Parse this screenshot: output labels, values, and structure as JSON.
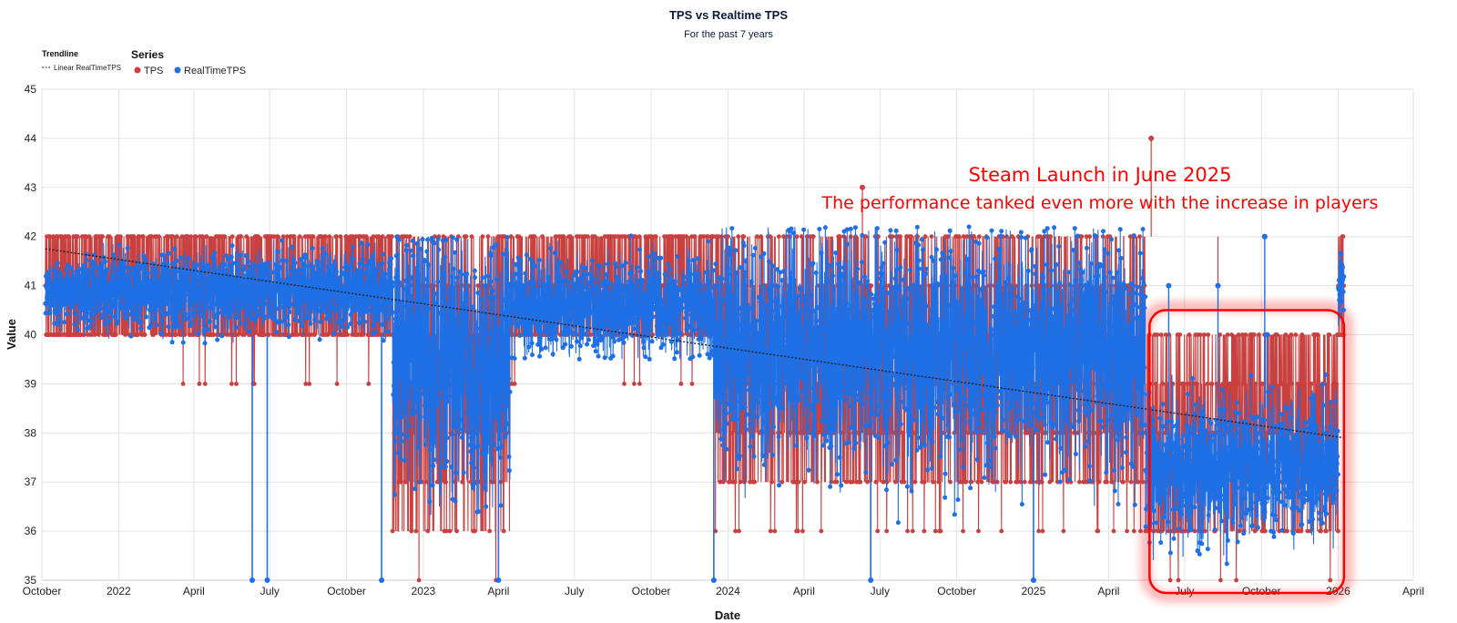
{
  "chart_data": {
    "type": "line",
    "title": "TPS vs Realtime TPS",
    "subtitle": "For the past 7 years",
    "xlabel": "Date",
    "ylabel": "Value",
    "xlim": [
      "2021-10-01",
      "2026-04-01"
    ],
    "ylim": [
      35,
      45
    ],
    "y_ticks": [
      "35",
      "36",
      "37",
      "38",
      "39",
      "40",
      "41",
      "42",
      "43",
      "44",
      "45"
    ],
    "x_ticks": [
      {
        "date": "2021-10-01",
        "label": "October"
      },
      {
        "date": "2022-01-01",
        "label": "2022"
      },
      {
        "date": "2022-04-01",
        "label": "April"
      },
      {
        "date": "2022-07-01",
        "label": "July"
      },
      {
        "date": "2022-10-01",
        "label": "October"
      },
      {
        "date": "2023-01-01",
        "label": "2023"
      },
      {
        "date": "2023-04-01",
        "label": "April"
      },
      {
        "date": "2023-07-01",
        "label": "July"
      },
      {
        "date": "2023-10-01",
        "label": "October"
      },
      {
        "date": "2024-01-01",
        "label": "2024"
      },
      {
        "date": "2024-04-01",
        "label": "April"
      },
      {
        "date": "2024-07-01",
        "label": "July"
      },
      {
        "date": "2024-10-01",
        "label": "October"
      },
      {
        "date": "2025-01-01",
        "label": "2025"
      },
      {
        "date": "2025-04-01",
        "label": "April"
      },
      {
        "date": "2025-07-01",
        "label": "July"
      },
      {
        "date": "2025-10-01",
        "label": "October"
      },
      {
        "date": "2026-01-01",
        "label": "2026"
      },
      {
        "date": "2026-04-01",
        "label": "April"
      }
    ],
    "grid": true,
    "legend_placement": "top-left",
    "legend": {
      "trendline_title": "Trendline",
      "trendline_label": "Linear RealTimeTPS",
      "series_title": "Series"
    },
    "series": [
      {
        "name": "TPS",
        "color": "#c8403f",
        "regimes": [
          {
            "start": "2021-10-05",
            "end": "2021-11-20",
            "values": [
              40,
              41,
              42
            ],
            "min": 40,
            "max": 42
          },
          {
            "start": "2021-11-20",
            "end": "2022-11-25",
            "values": [
              40,
              41,
              42
            ],
            "min": 39,
            "max": 42
          },
          {
            "start": "2022-11-25",
            "end": "2023-04-15",
            "values": [
              36,
              37,
              38,
              39,
              40,
              41,
              42
            ],
            "min": 35,
            "max": 42
          },
          {
            "start": "2023-04-15",
            "end": "2023-12-15",
            "values": [
              40,
              41,
              42
            ],
            "min": 39,
            "max": 42
          },
          {
            "start": "2023-12-15",
            "end": "2025-05-15",
            "values": [
              37,
              38,
              39,
              40,
              41,
              42
            ],
            "min": 36,
            "max": 42
          },
          {
            "start": "2025-05-15",
            "end": "2026-01-01",
            "values": [
              36,
              37,
              38,
              39,
              40
            ],
            "min": 35,
            "max": 40
          },
          {
            "start": "2026-01-01",
            "end": "2026-01-08",
            "values": [
              40,
              41,
              42
            ],
            "min": 40,
            "max": 42
          }
        ],
        "spikes": [
          {
            "date": "2024-06-10",
            "value": 43
          },
          {
            "date": "2025-05-22",
            "value": 44
          },
          {
            "date": "2025-08-10",
            "value": 41
          },
          {
            "date": "2025-10-05",
            "value": 42
          }
        ]
      },
      {
        "name": "RealTimeTPS",
        "color": "#1f6fe5",
        "regimes": [
          {
            "start": "2021-10-05",
            "end": "2021-11-20",
            "mean": 40.9,
            "min": 40.0,
            "max": 41.5
          },
          {
            "start": "2021-11-20",
            "end": "2022-11-25",
            "mean": 40.9,
            "min": 39.8,
            "max": 42.2
          },
          {
            "start": "2022-11-25",
            "end": "2023-04-15",
            "mean": 39.5,
            "min": 35.0,
            "max": 42.0
          },
          {
            "start": "2023-04-15",
            "end": "2023-12-15",
            "mean": 40.6,
            "min": 39.5,
            "max": 42.2
          },
          {
            "start": "2023-12-15",
            "end": "2025-05-15",
            "mean": 39.7,
            "min": 36.0,
            "max": 42.2
          },
          {
            "start": "2025-05-15",
            "end": "2026-01-01",
            "mean": 37.3,
            "min": 35.0,
            "max": 39.2
          },
          {
            "start": "2026-01-01",
            "end": "2026-01-08",
            "mean": 41.0,
            "min": 39.8,
            "max": 42.0
          }
        ],
        "dips": [
          {
            "date": "2022-06-10",
            "value": 35
          },
          {
            "date": "2022-06-28",
            "value": 35
          },
          {
            "date": "2022-11-12",
            "value": 35
          },
          {
            "date": "2023-04-01",
            "value": 35
          },
          {
            "date": "2023-12-15",
            "value": 35
          },
          {
            "date": "2024-06-20",
            "value": 35
          },
          {
            "date": "2025-01-01",
            "value": 35
          }
        ],
        "spikes": [
          {
            "date": "2025-06-12",
            "value": 41
          },
          {
            "date": "2025-08-10",
            "value": 41
          },
          {
            "date": "2025-10-05",
            "value": 42
          },
          {
            "date": "2025-10-08",
            "value": 40
          }
        ]
      }
    ],
    "trendline": {
      "name": "Linear RealTimeTPS",
      "start": {
        "date": "2021-10-05",
        "value": 41.75
      },
      "end": {
        "date": "2026-01-08",
        "value": 37.9
      }
    },
    "annotations": [
      {
        "text": "Steam Launch in June 2025"
      },
      {
        "text": "The performance tanked even more with the increase in players"
      }
    ],
    "highlight": {
      "start": "2025-05-20",
      "end": "2026-01-08",
      "ymin": 35,
      "ymax": 40.5,
      "color": "#ff0000"
    }
  }
}
